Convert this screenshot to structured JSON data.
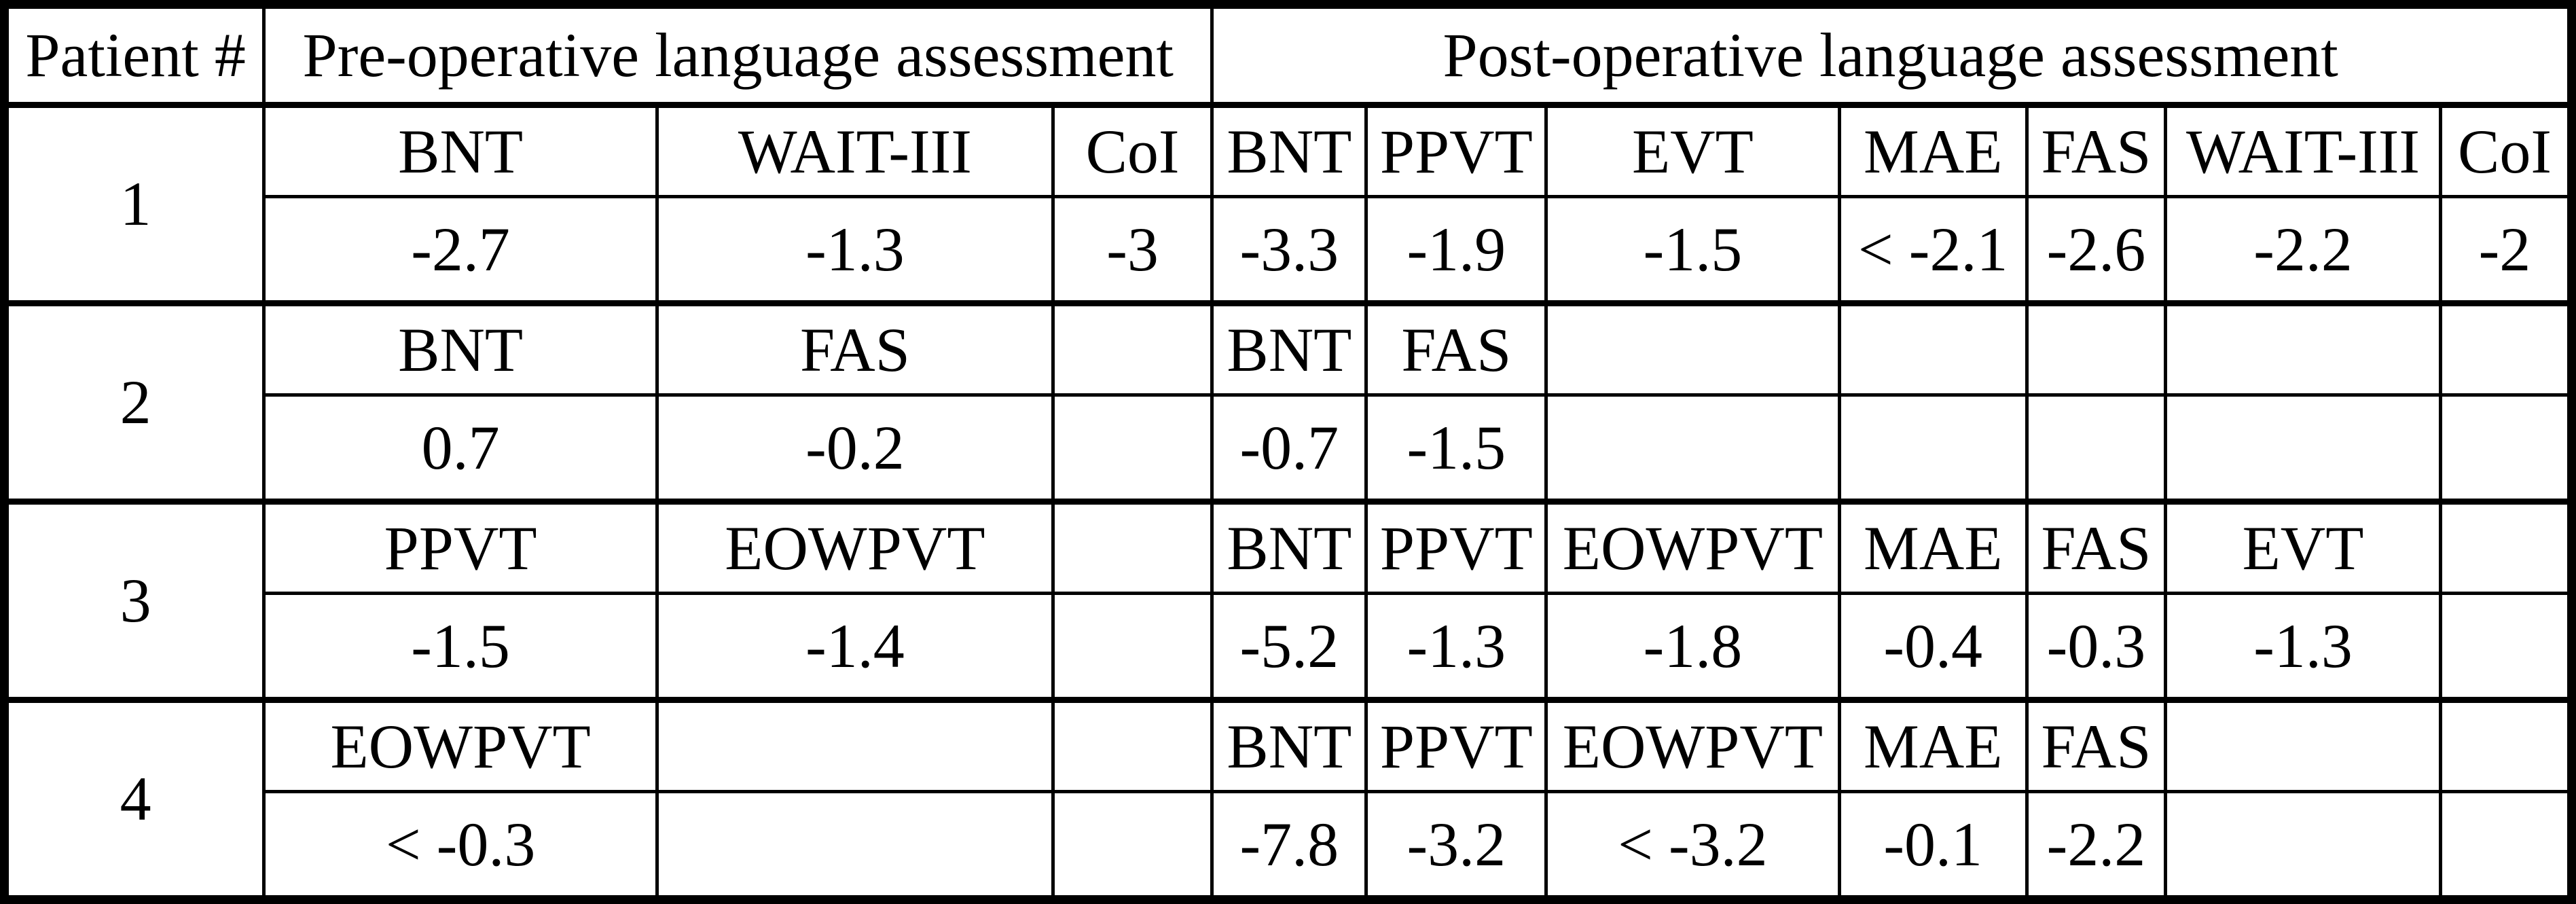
{
  "colors": {
    "ink": "#000000",
    "paper": "#ffffff"
  },
  "table": {
    "header": {
      "patient_col": "Patient #",
      "pre_header": "Pre-operative language assessment",
      "post_header": "Post-operative language assessment"
    },
    "pre_col_count": 3,
    "post_col_count": 7,
    "patients": [
      {
        "number": "1",
        "pre_tests": [
          "BNT",
          "WAIT-III",
          "CoI"
        ],
        "pre_values": [
          "-2.7",
          "-1.3",
          "-3"
        ],
        "post_tests": [
          "BNT",
          "PPVT",
          "EVT",
          "MAE",
          "FAS",
          "WAIT-III",
          "CoI"
        ],
        "post_values": [
          "-3.3",
          "-1.9",
          "-1.5",
          "< -2.1",
          "-2.6",
          "-2.2",
          "-2"
        ]
      },
      {
        "number": "2",
        "pre_tests": [
          "BNT",
          "FAS",
          ""
        ],
        "pre_values": [
          "0.7",
          "-0.2",
          ""
        ],
        "post_tests": [
          "BNT",
          "FAS",
          "",
          "",
          "",
          "",
          ""
        ],
        "post_values": [
          "-0.7",
          "-1.5",
          "",
          "",
          "",
          "",
          ""
        ]
      },
      {
        "number": "3",
        "pre_tests": [
          "PPVT",
          "EOWPVT",
          ""
        ],
        "pre_values": [
          "-1.5",
          "-1.4",
          ""
        ],
        "post_tests": [
          "BNT",
          "PPVT",
          "EOWPVT",
          "MAE",
          "FAS",
          "EVT",
          ""
        ],
        "post_values": [
          "-5.2",
          "-1.3",
          "-1.8",
          "-0.4",
          "-0.3",
          "-1.3",
          ""
        ]
      },
      {
        "number": "4",
        "pre_tests": [
          "EOWPVT",
          "",
          ""
        ],
        "pre_values": [
          "< -0.3",
          "",
          ""
        ],
        "post_tests": [
          "BNT",
          "PPVT",
          "EOWPVT",
          "MAE",
          "FAS",
          "",
          ""
        ],
        "post_values": [
          "-7.8",
          "-3.2",
          "< -3.2",
          "-0.1",
          "-2.2",
          "",
          ""
        ]
      }
    ]
  }
}
